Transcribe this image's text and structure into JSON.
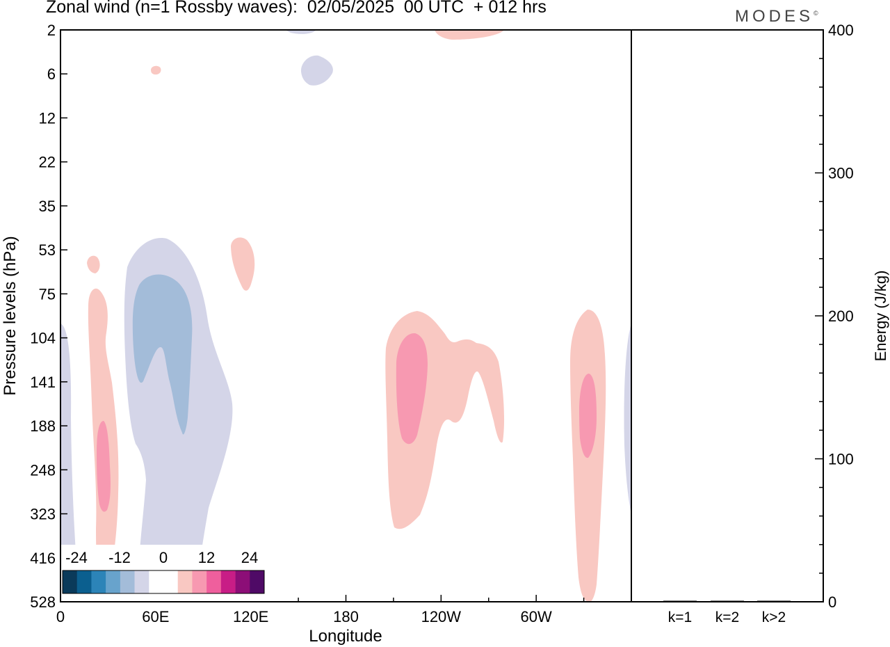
{
  "chart_data": [
    {
      "type": "heatmap",
      "subtype": "filled-contour",
      "title": "Zonal wind (n=1 Rossby waves):  02/05/2025  00 UTC  + 012 hrs",
      "xlabel": "Longitude",
      "ylabel": "Pressure levels (hPa)",
      "x_ticks": [
        "0",
        "60E",
        "120E",
        "180",
        "120W",
        "60W"
      ],
      "x_range_deg_east": [
        0,
        360
      ],
      "y_ticks": [
        "2",
        "6",
        "12",
        "22",
        "35",
        "53",
        "75",
        "104",
        "141",
        "188",
        "248",
        "323",
        "416",
        "528"
      ],
      "y_scale": "pressure levels, top = 2 hPa, bottom = 528 hPa",
      "colorbar": {
        "labels": [
          "-24",
          "-12",
          "0",
          "12",
          "24"
        ],
        "colors": [
          "#0a3a5a",
          "#0b5f8f",
          "#2c84b8",
          "#68a3cc",
          "#a3bcd9",
          "#d4d5e8",
          "#ffffff",
          "#ffffff",
          "#f9c8c2",
          "#f799b1",
          "#ef5f9d",
          "#c81d86",
          "#8c0e77",
          "#4f0a66"
        ],
        "position": "bottom-left inset"
      },
      "regions": [
        {
          "name": "negative-weak-west-edge",
          "level": "-6",
          "lon": [
            0,
            8
          ],
          "p_range": [
            104,
            528
          ]
        },
        {
          "name": "negative-weak-main",
          "level": "-6",
          "lon": [
            35,
            95
          ],
          "p_range": [
            53,
            528
          ]
        },
        {
          "name": "negative-moderate-core",
          "level": "-12",
          "lon": [
            45,
            82
          ],
          "p_range": [
            75,
            188
          ]
        },
        {
          "name": "negative-weak-upper",
          "level": "-6",
          "lon": [
            148,
            160
          ],
          "p_range": [
            2,
            6
          ]
        },
        {
          "name": "positive-weak-south",
          "level": "+6",
          "lon": [
            17,
            35
          ],
          "p_range": [
            53,
            528
          ]
        },
        {
          "name": "positive-moderate-south",
          "level": "+12",
          "lon": [
            22,
            32
          ],
          "p_range": [
            188,
            323
          ]
        },
        {
          "name": "positive-weak-top",
          "level": "+6",
          "lon": [
            240,
            280
          ],
          "p_range": [
            2,
            2
          ]
        },
        {
          "name": "positive-weak-isolated",
          "level": "+6",
          "lon": [
            107,
            123
          ],
          "p_range": [
            53,
            75
          ]
        },
        {
          "name": "positive-weak-central",
          "level": "+6",
          "lon": [
            205,
            280
          ],
          "p_range": [
            104,
            323
          ]
        },
        {
          "name": "positive-moderate-central",
          "level": "+12",
          "lon": [
            212,
            232
          ],
          "p_range": [
            104,
            188
          ]
        },
        {
          "name": "positive-weak-east",
          "level": "+6",
          "lon": [
            323,
            345
          ],
          "p_range": [
            104,
            528
          ]
        },
        {
          "name": "positive-moderate-east",
          "level": "+12",
          "lon": [
            328,
            340
          ],
          "p_range": [
            141,
            248
          ]
        }
      ]
    },
    {
      "type": "bar",
      "ylabel": "Energy (J/kg)",
      "categories": [
        "k=1",
        "k=2",
        "k>2"
      ],
      "values": [
        0.5,
        0.5,
        0.5
      ],
      "ylim": [
        0,
        400
      ],
      "y_ticks": [
        "0",
        "100",
        "200",
        "300",
        "400"
      ]
    }
  ],
  "brand": {
    "name": "MODES",
    "mark": "©"
  }
}
